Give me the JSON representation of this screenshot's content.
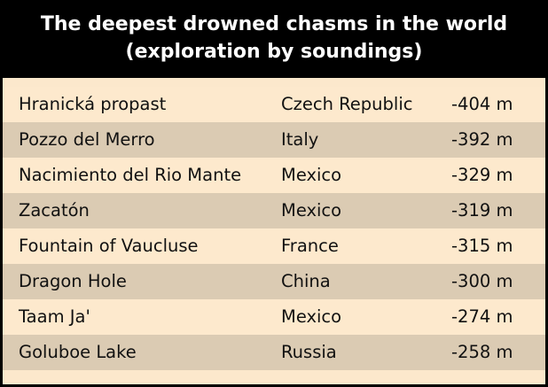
{
  "chart_data": {
    "type": "table",
    "title_lines": [
      "The deepest drowned chasms in the world",
      "(exploration by soundings)"
    ],
    "rows": [
      {
        "name": "Hranická propast",
        "country": "Czech Republic",
        "depth_label": "-404 m",
        "depth": -404
      },
      {
        "name": "Pozzo del Merro",
        "country": "Italy",
        "depth_label": "-392 m",
        "depth": -392
      },
      {
        "name": "Nacimiento del Rio Mante",
        "country": "Mexico",
        "depth_label": "-329 m",
        "depth": -329
      },
      {
        "name": "Zacatón",
        "country": "Mexico",
        "depth_label": "-319 m",
        "depth": -319
      },
      {
        "name": "Fountain of Vaucluse",
        "country": "France",
        "depth_label": "-315 m",
        "depth": -315
      },
      {
        "name": "Dragon Hole",
        "country": "China",
        "depth_label": "-300 m",
        "depth": -300
      },
      {
        "name": "Taam Ja'",
        "country": "Mexico",
        "depth_label": "-274 m",
        "depth": -274
      },
      {
        "name": "Goluboe Lake",
        "country": "Russia",
        "depth_label": "-258 m",
        "depth": -258
      }
    ]
  },
  "colors": {
    "header_background": "#000000",
    "title_text": "#ffffff",
    "row_light": "#fde9cd",
    "row_dark": "#dbcbb3",
    "cell_text": "#111111"
  }
}
